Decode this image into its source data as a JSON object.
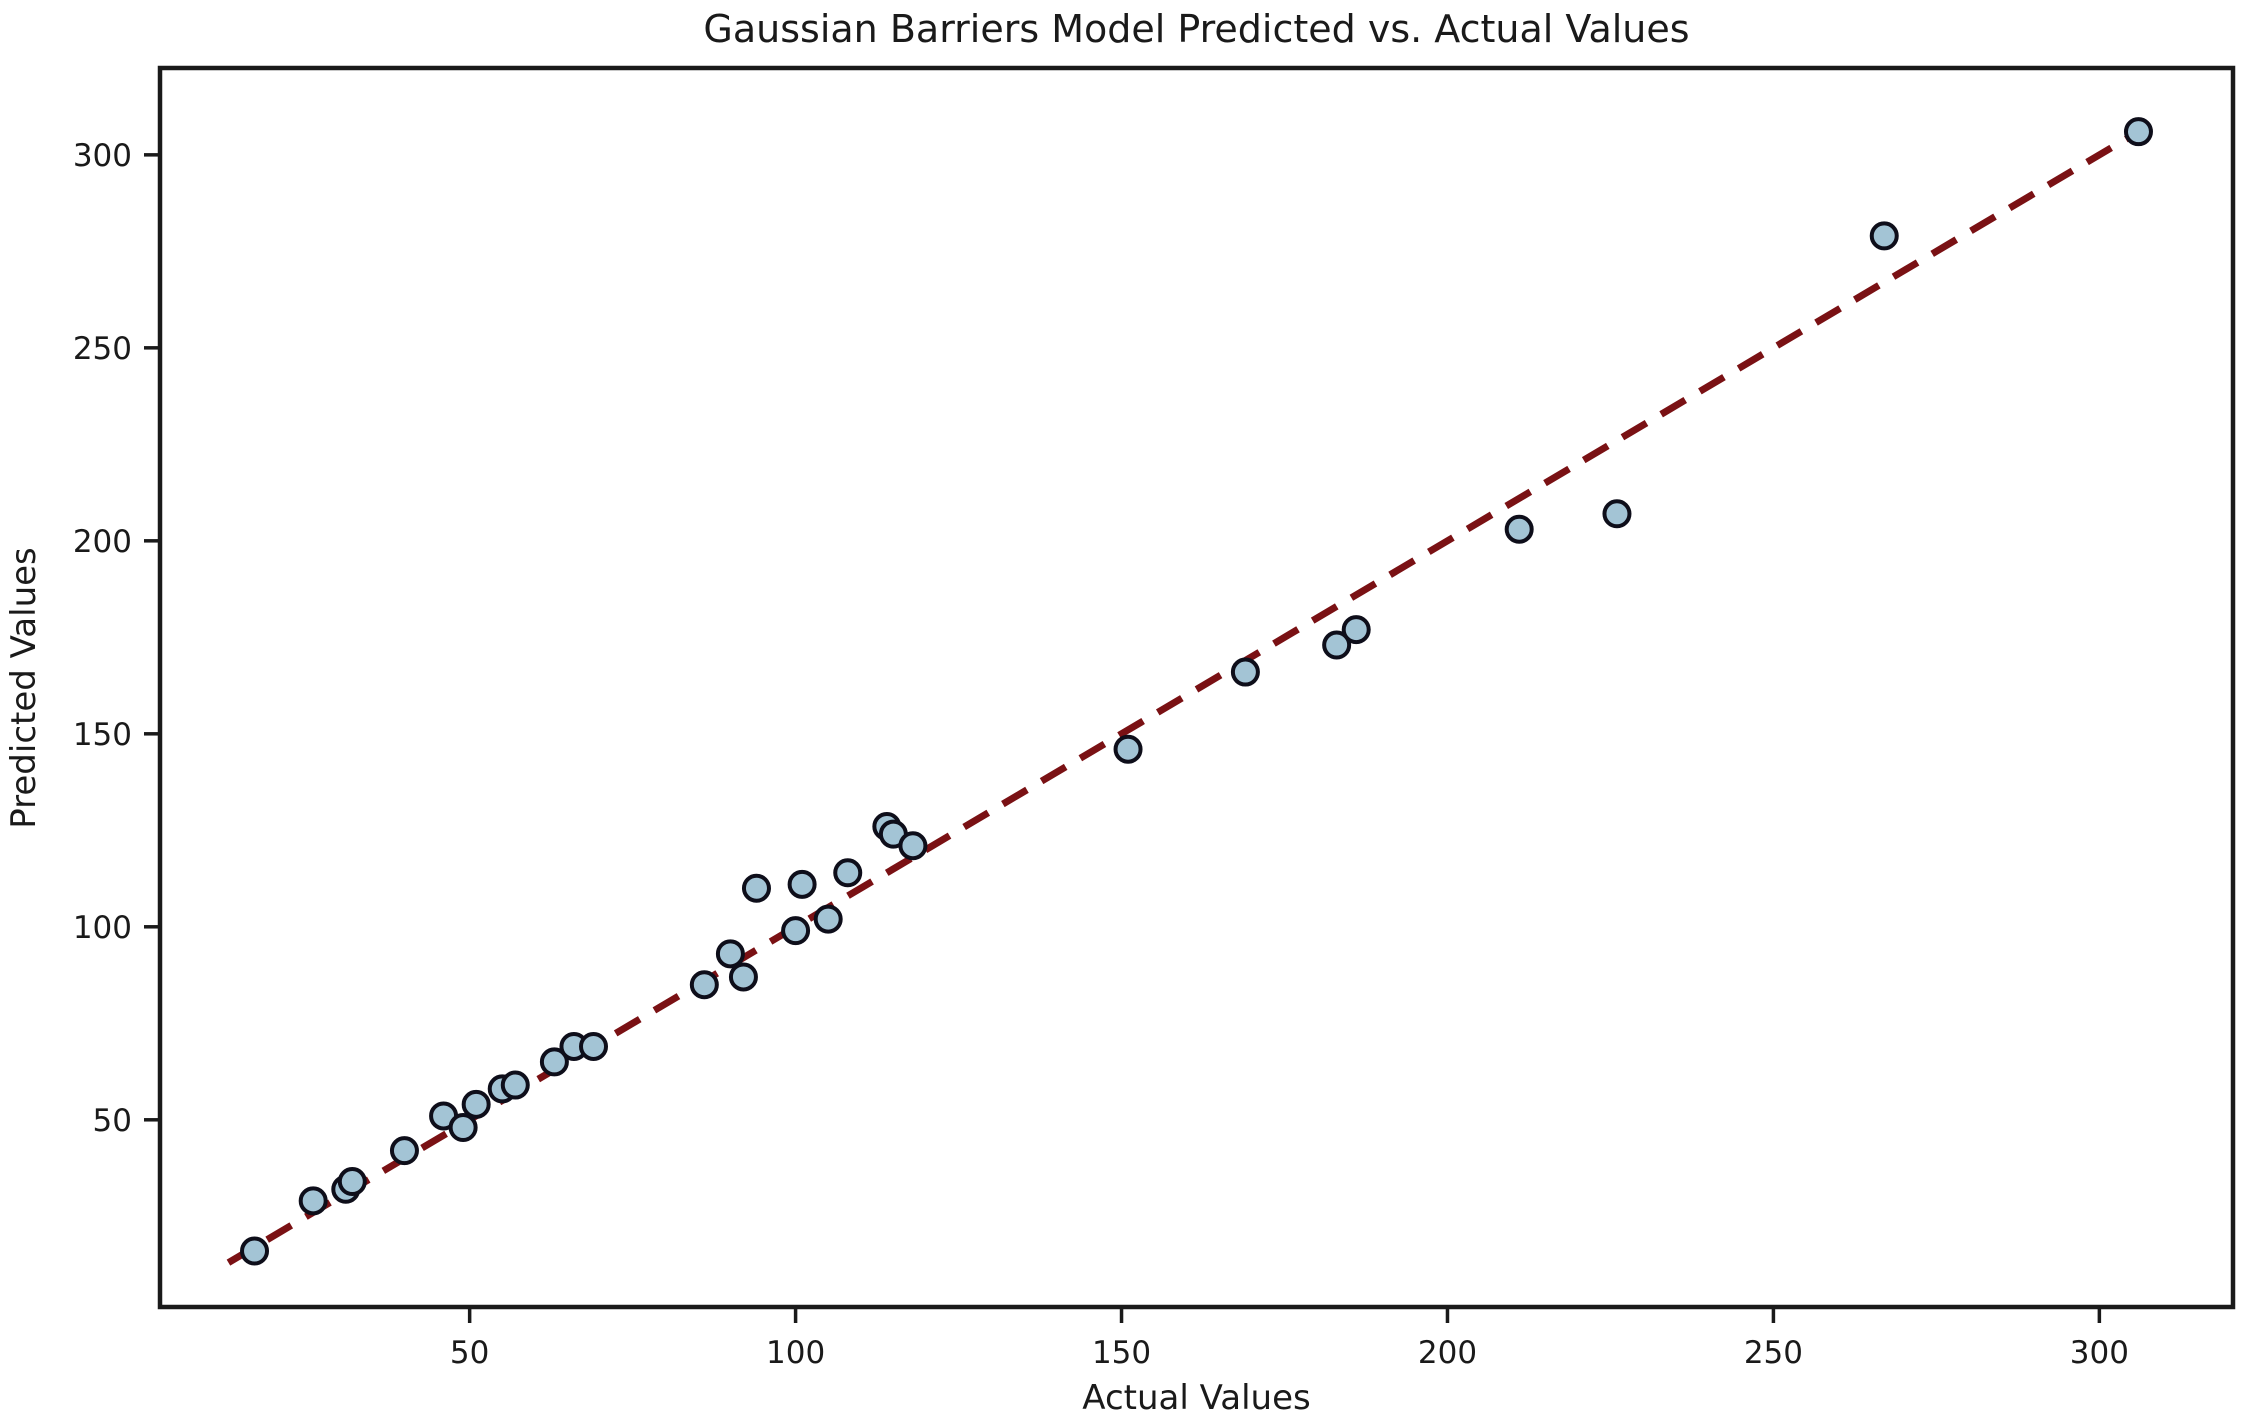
{
  "title": "Gaussian Barriers Model Predicted vs. Actual Values",
  "axes": {
    "xlabel": "Actual Values",
    "ylabel": "Predicted Values"
  },
  "colors": {
    "background": "#ffffff",
    "text": "#1a1a1a",
    "spine": "#1a1a1a",
    "tick": "#1a1a1a",
    "point_fill": "#a3c4d5",
    "point_edge": "#0e0e1a",
    "line": "#7a1114"
  },
  "chart_data": {
    "type": "scatter",
    "title": "Gaussian Barriers Model Predicted vs. Actual Values",
    "xlabel": "Actual Values",
    "ylabel": "Predicted Values",
    "xlim": [
      2.5,
      320.5
    ],
    "ylim": [
      1.5,
      322.5
    ],
    "xticks": [
      50,
      100,
      150,
      200,
      250,
      300
    ],
    "yticks": [
      50,
      100,
      150,
      200,
      250,
      300
    ],
    "grid": false,
    "legend": null,
    "series": [
      {
        "name": "predictions",
        "type": "scatter",
        "marker": "circle",
        "points": [
          [
            17,
            16
          ],
          [
            26,
            29
          ],
          [
            31,
            32
          ],
          [
            32,
            34
          ],
          [
            40,
            42
          ],
          [
            46,
            51
          ],
          [
            49,
            48
          ],
          [
            51,
            54
          ],
          [
            55,
            58
          ],
          [
            57,
            59
          ],
          [
            63,
            65
          ],
          [
            66,
            69
          ],
          [
            69,
            69
          ],
          [
            86,
            85
          ],
          [
            90,
            93
          ],
          [
            92,
            87
          ],
          [
            94,
            110
          ],
          [
            100,
            99
          ],
          [
            101,
            111
          ],
          [
            105,
            102
          ],
          [
            108,
            114
          ],
          [
            114,
            126
          ],
          [
            115,
            124
          ],
          [
            118,
            121
          ],
          [
            151,
            146
          ],
          [
            169,
            166
          ],
          [
            183,
            173
          ],
          [
            186,
            177
          ],
          [
            211,
            203
          ],
          [
            226,
            207
          ],
          [
            267,
            279
          ],
          [
            306,
            306
          ]
        ]
      },
      {
        "name": "identity-line",
        "type": "line",
        "style": "dashed",
        "x": [
          13,
          307
        ],
        "y": [
          13,
          307
        ]
      }
    ]
  }
}
